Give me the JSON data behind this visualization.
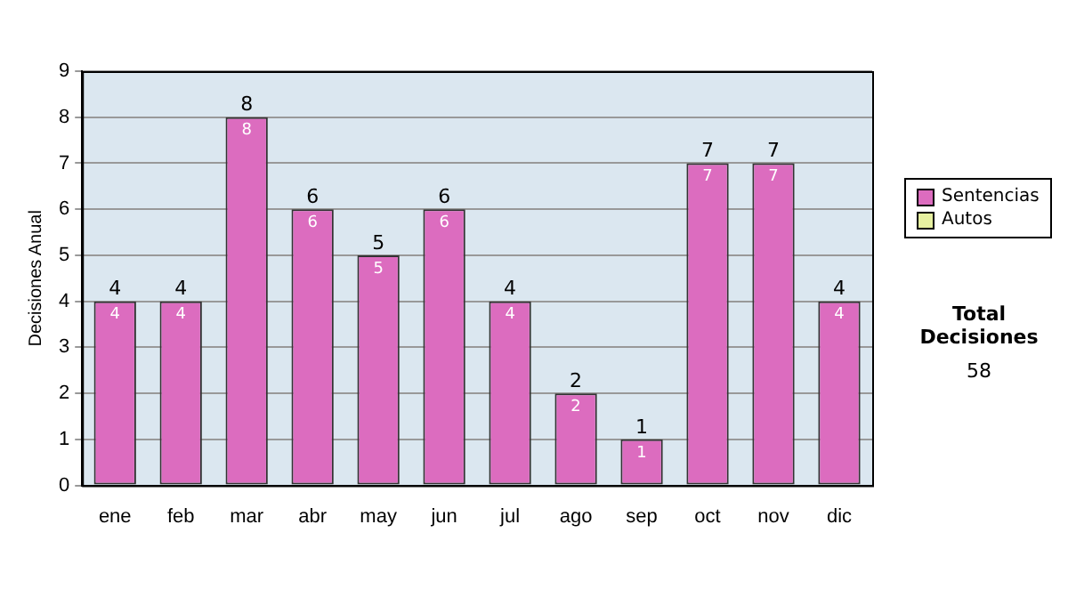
{
  "chart_data": {
    "type": "bar",
    "ylabel": "Decisiones Anual",
    "categories": [
      "ene",
      "feb",
      "mar",
      "abr",
      "may",
      "jun",
      "jul",
      "ago",
      "sep",
      "oct",
      "nov",
      "dic"
    ],
    "series": [
      {
        "name": "Sentencias",
        "color": "#dc6cbf",
        "values": [
          4,
          4,
          8,
          6,
          5,
          6,
          4,
          2,
          1,
          7,
          7,
          4
        ]
      },
      {
        "name": "Autos",
        "color": "#e6f0a0",
        "values": [
          null,
          null,
          null,
          null,
          null,
          null,
          null,
          null,
          null,
          null,
          null,
          null
        ]
      }
    ],
    "stacked": true,
    "data_labels": true,
    "totals": [
      "4",
      "4",
      "8",
      "6",
      "5",
      "6",
      "4",
      "2",
      "1",
      "7",
      "7",
      "4"
    ],
    "ylim": [
      0,
      9
    ],
    "yticks": [
      0,
      1,
      2,
      3,
      4,
      5,
      6,
      7,
      8,
      9
    ],
    "grid": "y",
    "legend": "right",
    "annotations": [
      "Total Decisiones",
      "58"
    ]
  }
}
